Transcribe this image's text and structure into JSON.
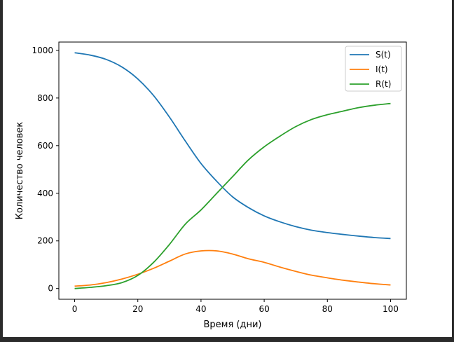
{
  "chart_data": {
    "type": "line",
    "title": "",
    "xlabel": "Время (дни)",
    "ylabel": "Количество человек",
    "xlim": [
      -5,
      105
    ],
    "ylim": [
      -45,
      1035
    ],
    "xticks": [
      "0",
      "20",
      "40",
      "60",
      "80",
      "100"
    ],
    "yticks": [
      "0",
      "200",
      "400",
      "600",
      "800",
      "1000"
    ],
    "grid": false,
    "legend_position": "top-right",
    "x": [
      0,
      5,
      10,
      15,
      20,
      25,
      30,
      35,
      40,
      45,
      50,
      55,
      60,
      65,
      70,
      75,
      80,
      85,
      90,
      95,
      100
    ],
    "series": [
      {
        "name": "S(t)",
        "color": "#1f77b4",
        "values": [
          990,
          980,
          962,
          930,
          880,
          810,
          720,
          620,
          525,
          450,
          385,
          340,
          305,
          280,
          260,
          245,
          235,
          227,
          220,
          214,
          210
        ]
      },
      {
        "name": "I(t)",
        "color": "#ff7f0e",
        "values": [
          10,
          15,
          25,
          40,
          60,
          85,
          115,
          145,
          158,
          158,
          145,
          125,
          110,
          90,
          72,
          56,
          45,
          35,
          27,
          20,
          15
        ]
      },
      {
        "name": "R(t)",
        "color": "#2ca02c",
        "values": [
          0,
          5,
          12,
          25,
          55,
          110,
          185,
          270,
          330,
          400,
          470,
          540,
          595,
          640,
          680,
          710,
          730,
          745,
          760,
          770,
          777
        ]
      }
    ]
  }
}
